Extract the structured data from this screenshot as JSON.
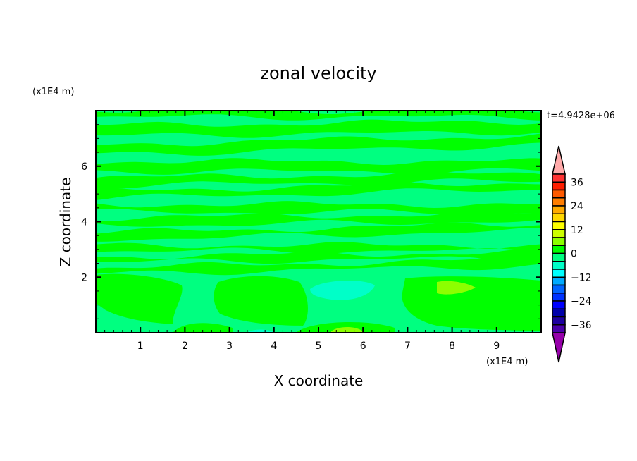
{
  "chart_data": {
    "type": "heatmap",
    "subtype": "filled-contour",
    "title": "zonal velocity",
    "xlabel": "X coordinate",
    "ylabel": "Z coordinate",
    "x_unit_label": "(x1E4 m)",
    "y_unit_label": "(x1E4 m)",
    "time_label": "t=4.9428e+06",
    "xlim": [
      0,
      10
    ],
    "ylim": [
      0,
      8
    ],
    "x_ticks": [
      "1",
      "2",
      "3",
      "4",
      "5",
      "6",
      "7",
      "8",
      "9"
    ],
    "y_ticks": [
      "2",
      "4",
      "6"
    ],
    "colorbar": {
      "levels": [
        -40,
        -36,
        -32,
        -28,
        -24,
        -20,
        -16,
        -12,
        -8,
        -4,
        0,
        4,
        8,
        12,
        16,
        20,
        24,
        28,
        32,
        36,
        40
      ],
      "labels": [
        "36",
        "24",
        "12",
        "0",
        "-12",
        "-24",
        "-36"
      ],
      "colors_top_to_bottom": [
        "#ff3232",
        "#ff1e00",
        "#ff5a00",
        "#ff7d00",
        "#ffaa00",
        "#ffd700",
        "#ffff00",
        "#cdff00",
        "#8cff00",
        "#00ff00",
        "#00ff80",
        "#00ffc8",
        "#00ffff",
        "#00aaff",
        "#0064ff",
        "#0032ff",
        "#0000ff",
        "#0000aa",
        "#1e00a0",
        "#4b00aa"
      ],
      "over_color": "#ffaaaa",
      "under_color": "#9600aa",
      "orientation": "vertical",
      "placement": "right"
    },
    "field_summary": "values mostly between -4 and 4 m/s in horizontal bands; weak negative cell (-12 to -8) near x=5.5, z=1.5; weak positive cells (4 to 8) near x=7.9, z=1.6 and x=5.6, z=0.1"
  }
}
